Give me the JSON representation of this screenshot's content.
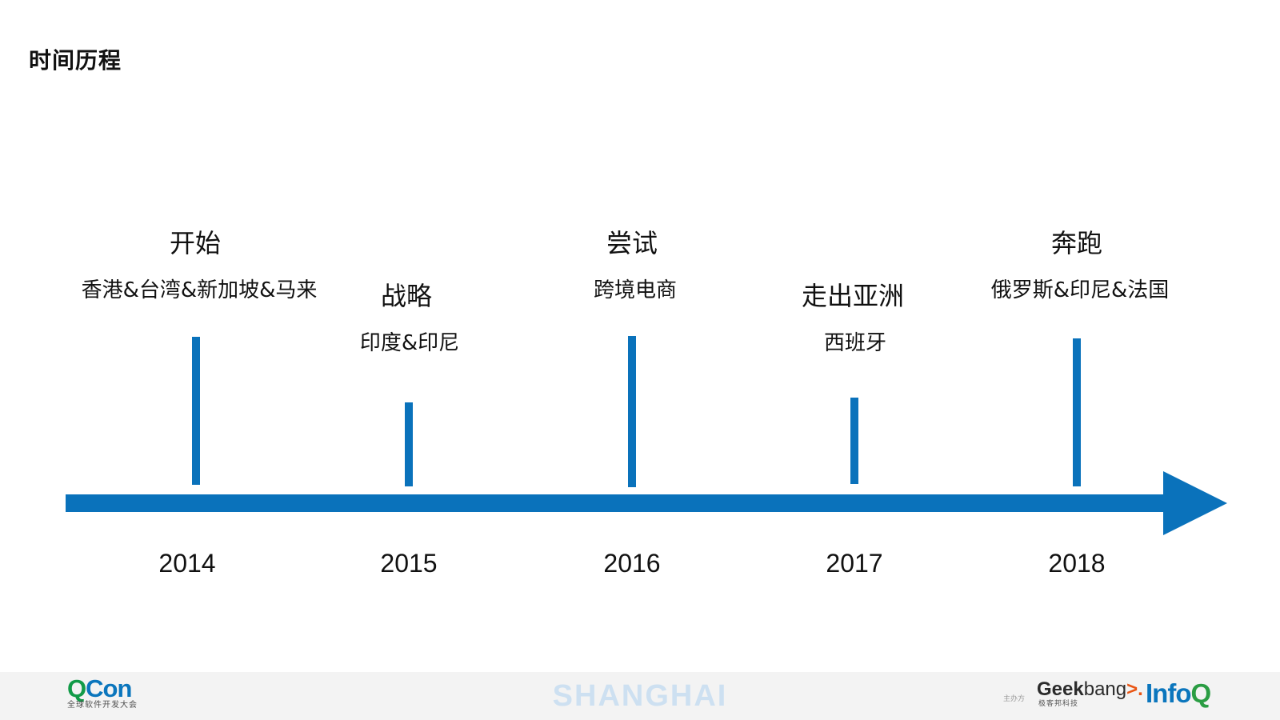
{
  "page": {
    "title": "时间历程"
  },
  "timeline": {
    "arrow_color": "#0a72bb",
    "milestones": [
      {
        "year": "2014",
        "title": "开始",
        "subtitle": "香港&台湾&新加坡&马来"
      },
      {
        "year": "2015",
        "title": "战略",
        "subtitle": "印度&印尼"
      },
      {
        "year": "2016",
        "title": "尝试",
        "subtitle": "跨境电商"
      },
      {
        "year": "2017",
        "title": "走出亚洲",
        "subtitle": "西班牙"
      },
      {
        "year": "2018",
        "title": "奔跑",
        "subtitle": "俄罗斯&印尼&法国"
      }
    ]
  },
  "footer": {
    "qcon": {
      "name_q": "Q",
      "name_rest": "Con",
      "subtitle": "全球软件开发大会"
    },
    "city": "SHANGHAI",
    "organizer_label": "主办方",
    "geekbang": {
      "name_geek": "Geek",
      "name_bang": "bang",
      "name_mark": ">.",
      "subtitle": "极客邦科技"
    },
    "infoq": {
      "name_info": "Info",
      "name_q": "Q"
    },
    "colors": {
      "qcon_green": "#129b48",
      "qcon_blue": "#0b76bd",
      "city": "#cde0f1",
      "geekbang_accent": "#e95513",
      "infoq_blue": "#0b76bd",
      "infoq_green": "#2a9d43"
    }
  }
}
